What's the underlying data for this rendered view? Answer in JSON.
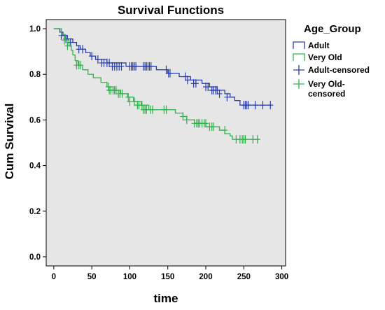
{
  "chart_data": {
    "type": "line",
    "subtype": "kaplan-meier-survival",
    "title": "Survival Functions",
    "xlabel": "time",
    "ylabel": "Cum Survival",
    "xlim": [
      -10,
      305
    ],
    "ylim": [
      -0.04,
      1.04
    ],
    "xticks": [
      0,
      50,
      100,
      150,
      200,
      250,
      300
    ],
    "yticks": [
      0.0,
      0.2,
      0.4,
      0.6,
      0.8,
      1.0
    ],
    "xtick_labels": [
      "0",
      "50",
      "100",
      "150",
      "200",
      "250",
      "300"
    ],
    "ytick_labels": [
      "0.0",
      "0.2",
      "0.4",
      "0.6",
      "0.8",
      "1.0"
    ],
    "grid": false,
    "background": "#e6e6e6",
    "legend": {
      "title": "Age_Group",
      "position": "right",
      "entries": [
        {
          "label": "Adult",
          "symbol": "step",
          "series": "Adult"
        },
        {
          "label": "Very Old",
          "symbol": "step",
          "series": "Very Old"
        },
        {
          "label": "Adult-censored",
          "symbol": "cross",
          "series": "Adult"
        },
        {
          "label": "Very Old-\ncensored",
          "symbol": "cross",
          "series": "Very Old"
        }
      ]
    },
    "series": [
      {
        "name": "Adult",
        "color": "#2a3ea8",
        "steps": [
          [
            0,
            1.0
          ],
          [
            8,
            0.985
          ],
          [
            12,
            0.97
          ],
          [
            18,
            0.955
          ],
          [
            25,
            0.94
          ],
          [
            30,
            0.925
          ],
          [
            35,
            0.91
          ],
          [
            42,
            0.895
          ],
          [
            48,
            0.88
          ],
          [
            55,
            0.865
          ],
          [
            70,
            0.85
          ],
          [
            95,
            0.835
          ],
          [
            135,
            0.82
          ],
          [
            150,
            0.805
          ],
          [
            165,
            0.79
          ],
          [
            180,
            0.775
          ],
          [
            195,
            0.76
          ],
          [
            205,
            0.745
          ],
          [
            215,
            0.73
          ],
          [
            225,
            0.715
          ],
          [
            232,
            0.7
          ],
          [
            238,
            0.685
          ],
          [
            245,
            0.665
          ],
          [
            285,
            0.665
          ]
        ],
        "censored": [
          [
            10,
            0.97
          ],
          [
            16,
            0.955
          ],
          [
            22,
            0.94
          ],
          [
            33,
            0.91
          ],
          [
            38,
            0.91
          ],
          [
            50,
            0.88
          ],
          [
            58,
            0.865
          ],
          [
            63,
            0.85
          ],
          [
            66,
            0.85
          ],
          [
            70,
            0.85
          ],
          [
            73,
            0.85
          ],
          [
            77,
            0.835
          ],
          [
            80,
            0.835
          ],
          [
            83,
            0.835
          ],
          [
            86,
            0.835
          ],
          [
            89,
            0.835
          ],
          [
            100,
            0.835
          ],
          [
            102,
            0.835
          ],
          [
            104,
            0.835
          ],
          [
            106,
            0.835
          ],
          [
            108,
            0.835
          ],
          [
            118,
            0.835
          ],
          [
            120,
            0.835
          ],
          [
            122,
            0.835
          ],
          [
            124,
            0.835
          ],
          [
            126,
            0.835
          ],
          [
            128,
            0.835
          ],
          [
            148,
            0.82
          ],
          [
            151,
            0.805
          ],
          [
            153,
            0.805
          ],
          [
            173,
            0.79
          ],
          [
            176,
            0.775
          ],
          [
            184,
            0.76
          ],
          [
            187,
            0.76
          ],
          [
            200,
            0.745
          ],
          [
            203,
            0.745
          ],
          [
            208,
            0.73
          ],
          [
            210,
            0.73
          ],
          [
            213,
            0.73
          ],
          [
            215,
            0.73
          ],
          [
            218,
            0.715
          ],
          [
            228,
            0.7
          ],
          [
            250,
            0.665
          ],
          [
            252,
            0.665
          ],
          [
            254,
            0.665
          ],
          [
            256,
            0.665
          ],
          [
            265,
            0.665
          ],
          [
            275,
            0.665
          ],
          [
            285,
            0.665
          ]
        ]
      },
      {
        "name": "Very Old",
        "color": "#2fb24a",
        "steps": [
          [
            0,
            1.0
          ],
          [
            10,
            0.975
          ],
          [
            15,
            0.95
          ],
          [
            20,
            0.925
          ],
          [
            23,
            0.905
          ],
          [
            25,
            0.885
          ],
          [
            28,
            0.86
          ],
          [
            32,
            0.84
          ],
          [
            38,
            0.82
          ],
          [
            45,
            0.8
          ],
          [
            52,
            0.785
          ],
          [
            62,
            0.765
          ],
          [
            70,
            0.745
          ],
          [
            78,
            0.73
          ],
          [
            88,
            0.715
          ],
          [
            97,
            0.7
          ],
          [
            105,
            0.68
          ],
          [
            115,
            0.665
          ],
          [
            125,
            0.645
          ],
          [
            160,
            0.63
          ],
          [
            170,
            0.615
          ],
          [
            175,
            0.6
          ],
          [
            185,
            0.585
          ],
          [
            200,
            0.57
          ],
          [
            218,
            0.555
          ],
          [
            225,
            0.54
          ],
          [
            232,
            0.53
          ],
          [
            235,
            0.515
          ],
          [
            270,
            0.515
          ]
        ],
        "censored": [
          [
            14,
            0.95
          ],
          [
            18,
            0.925
          ],
          [
            30,
            0.84
          ],
          [
            33,
            0.84
          ],
          [
            35,
            0.84
          ],
          [
            72,
            0.745
          ],
          [
            73,
            0.73
          ],
          [
            75,
            0.73
          ],
          [
            78,
            0.73
          ],
          [
            80,
            0.73
          ],
          [
            82,
            0.73
          ],
          [
            85,
            0.715
          ],
          [
            87,
            0.715
          ],
          [
            90,
            0.715
          ],
          [
            98,
            0.7
          ],
          [
            100,
            0.68
          ],
          [
            106,
            0.68
          ],
          [
            110,
            0.665
          ],
          [
            112,
            0.665
          ],
          [
            116,
            0.665
          ],
          [
            118,
            0.645
          ],
          [
            120,
            0.645
          ],
          [
            122,
            0.645
          ],
          [
            127,
            0.645
          ],
          [
            130,
            0.645
          ],
          [
            145,
            0.645
          ],
          [
            148,
            0.645
          ],
          [
            170,
            0.615
          ],
          [
            175,
            0.6
          ],
          [
            185,
            0.585
          ],
          [
            188,
            0.585
          ],
          [
            190,
            0.585
          ],
          [
            192,
            0.585
          ],
          [
            195,
            0.585
          ],
          [
            198,
            0.585
          ],
          [
            200,
            0.585
          ],
          [
            205,
            0.57
          ],
          [
            208,
            0.57
          ],
          [
            210,
            0.57
          ],
          [
            225,
            0.555
          ],
          [
            240,
            0.515
          ],
          [
            245,
            0.515
          ],
          [
            248,
            0.515
          ],
          [
            250,
            0.515
          ],
          [
            252,
            0.515
          ],
          [
            262,
            0.515
          ],
          [
            268,
            0.515
          ]
        ]
      }
    ]
  }
}
